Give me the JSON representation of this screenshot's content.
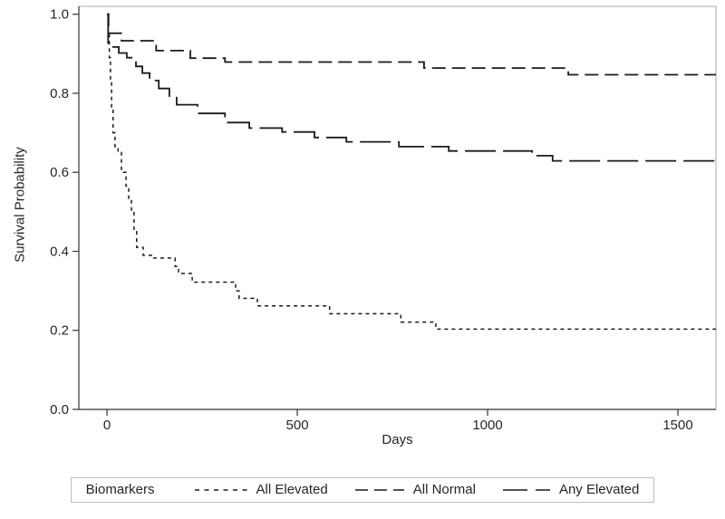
{
  "chart_data": {
    "type": "line",
    "subtype": "kaplan-meier-step-survival",
    "title": "",
    "xlabel": "Days",
    "ylabel": "Survival Probability",
    "xlim": [
      -74,
      1600
    ],
    "ylim": [
      0,
      1.02
    ],
    "xticks": [
      0,
      500,
      1000,
      1500
    ],
    "xtick_labels": [
      "0",
      "500",
      "1000",
      "1500"
    ],
    "yticks": [
      0.0,
      0.2,
      0.4,
      0.6,
      0.8,
      1.0
    ],
    "ytick_labels": [
      "0.0",
      "0.2",
      "0.4",
      "0.6",
      "0.8",
      "1.0"
    ],
    "grid": false,
    "legend_position": "bottom",
    "legend_title": "Biomarkers",
    "line_color": "#1a1a1a",
    "frame_color": "#a9a9a9",
    "axis_color": "#333333",
    "text_color": "#262626",
    "legend_border_color": "#bcbcbc",
    "series": [
      {
        "name": "All Elevated",
        "dash": "4 4",
        "width": 1.5,
        "legend_dash": "5 5.5",
        "legend_sample_width": 58,
        "points": [
          [
            0,
            1.0
          ],
          [
            3,
            0.95
          ],
          [
            6,
            0.89
          ],
          [
            9,
            0.83
          ],
          [
            12,
            0.76
          ],
          [
            16,
            0.7
          ],
          [
            21,
            0.665
          ],
          [
            29,
            0.65
          ],
          [
            38,
            0.6
          ],
          [
            50,
            0.565
          ],
          [
            57,
            0.53
          ],
          [
            64,
            0.505
          ],
          [
            71,
            0.45
          ],
          [
            78,
            0.41
          ],
          [
            95,
            0.39
          ],
          [
            117,
            0.383
          ],
          [
            179,
            0.362
          ],
          [
            188,
            0.344
          ],
          [
            224,
            0.322
          ],
          [
            338,
            0.3
          ],
          [
            347,
            0.281
          ],
          [
            395,
            0.262
          ],
          [
            585,
            0.242
          ],
          [
            772,
            0.221
          ],
          [
            864,
            0.203
          ],
          [
            1600,
            0.203
          ]
        ]
      },
      {
        "name": "All Normal",
        "dash": "15 7",
        "width": 1.8,
        "legend_dash": "14 7",
        "legend_sample_width": 54,
        "points": [
          [
            0,
            1.0
          ],
          [
            4,
            0.952
          ],
          [
            38,
            0.933
          ],
          [
            129,
            0.908
          ],
          [
            219,
            0.889
          ],
          [
            310,
            0.879
          ],
          [
            833,
            0.864
          ],
          [
            1212,
            0.847
          ],
          [
            1600,
            0.847
          ]
        ]
      },
      {
        "name": "Any Elevated",
        "dash": "34 8",
        "width": 1.8,
        "legend_dash": "27 9",
        "legend_sample_width": 52,
        "points": [
          [
            0,
            1.0
          ],
          [
            3,
            0.917
          ],
          [
            31,
            0.902
          ],
          [
            52,
            0.89
          ],
          [
            76,
            0.868
          ],
          [
            93,
            0.851
          ],
          [
            112,
            0.832
          ],
          [
            136,
            0.812
          ],
          [
            164,
            0.791
          ],
          [
            183,
            0.771
          ],
          [
            238,
            0.749
          ],
          [
            310,
            0.726
          ],
          [
            374,
            0.712
          ],
          [
            460,
            0.702
          ],
          [
            545,
            0.688
          ],
          [
            629,
            0.677
          ],
          [
            767,
            0.665
          ],
          [
            898,
            0.654
          ],
          [
            1117,
            0.642
          ],
          [
            1171,
            0.629
          ],
          [
            1600,
            0.629
          ]
        ]
      }
    ]
  }
}
